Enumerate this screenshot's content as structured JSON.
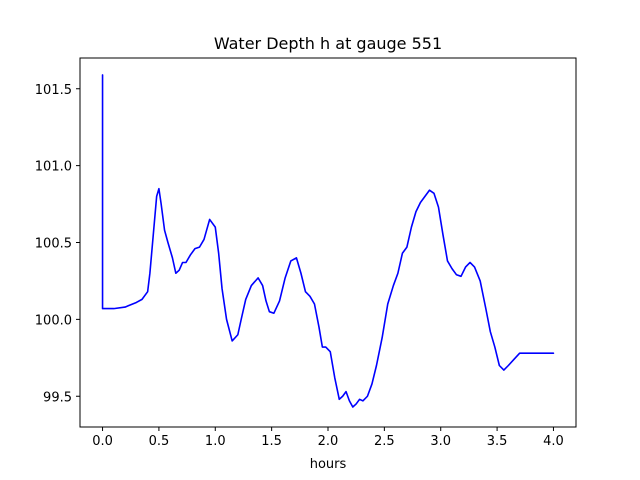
{
  "chart_data": {
    "type": "line",
    "title": "Water Depth h at gauge 551",
    "xlabel": "hours",
    "ylabel": "",
    "xlim": [
      -0.2,
      4.2
    ],
    "ylim": [
      99.3,
      101.7
    ],
    "xticks": [
      0.0,
      0.5,
      1.0,
      1.5,
      2.0,
      2.5,
      3.0,
      3.5,
      4.0
    ],
    "xtick_labels": [
      "0.0",
      "0.5",
      "1.0",
      "1.5",
      "2.0",
      "2.5",
      "3.0",
      "3.5",
      "4.0"
    ],
    "yticks": [
      99.5,
      100.0,
      100.5,
      101.0,
      101.5
    ],
    "ytick_labels": [
      "99.5",
      "100.0",
      "100.5",
      "101.0",
      "101.5"
    ],
    "grid": false,
    "series": [
      {
        "name": "h",
        "color": "#0000ff",
        "x": [
          0.0,
          0.0,
          0.001,
          0.05,
          0.1,
          0.2,
          0.3,
          0.35,
          0.4,
          0.42,
          0.45,
          0.48,
          0.5,
          0.52,
          0.55,
          0.58,
          0.62,
          0.65,
          0.68,
          0.71,
          0.74,
          0.78,
          0.82,
          0.86,
          0.9,
          0.95,
          1.0,
          1.03,
          1.06,
          1.1,
          1.15,
          1.2,
          1.23,
          1.27,
          1.32,
          1.38,
          1.42,
          1.45,
          1.48,
          1.52,
          1.57,
          1.62,
          1.67,
          1.72,
          1.76,
          1.8,
          1.84,
          1.88,
          1.92,
          1.95,
          1.98,
          2.02,
          2.06,
          2.1,
          2.13,
          2.16,
          2.19,
          2.22,
          2.25,
          2.28,
          2.31,
          2.35,
          2.39,
          2.43,
          2.48,
          2.53,
          2.58,
          2.62,
          2.66,
          2.7,
          2.74,
          2.78,
          2.82,
          2.86,
          2.9,
          2.94,
          2.98,
          3.02,
          3.06,
          3.1,
          3.14,
          3.18,
          3.22,
          3.26,
          3.3,
          3.35,
          3.4,
          3.44,
          3.48,
          3.52,
          3.56,
          3.6,
          3.65,
          3.7,
          3.75,
          3.8,
          3.83,
          3.86,
          3.9,
          3.95,
          4.0
        ],
        "values": [
          101.59,
          100.07,
          100.07,
          100.07,
          100.07,
          100.08,
          100.11,
          100.13,
          100.18,
          100.3,
          100.55,
          100.8,
          100.85,
          100.75,
          100.58,
          100.5,
          100.4,
          100.3,
          100.32,
          100.37,
          100.37,
          100.42,
          100.46,
          100.47,
          100.52,
          100.65,
          100.6,
          100.43,
          100.2,
          100.0,
          99.86,
          99.9,
          100.0,
          100.13,
          100.22,
          100.27,
          100.22,
          100.12,
          100.05,
          100.04,
          100.12,
          100.27,
          100.38,
          100.4,
          100.3,
          100.18,
          100.15,
          100.1,
          99.95,
          99.82,
          99.82,
          99.79,
          99.62,
          99.48,
          99.5,
          99.53,
          99.47,
          99.43,
          99.45,
          99.48,
          99.47,
          99.5,
          99.58,
          99.7,
          99.88,
          100.1,
          100.22,
          100.3,
          100.43,
          100.47,
          100.6,
          100.7,
          100.76,
          100.8,
          100.84,
          100.82,
          100.73,
          100.55,
          100.38,
          100.33,
          100.29,
          100.28,
          100.34,
          100.37,
          100.34,
          100.25,
          100.07,
          99.92,
          99.82,
          99.7,
          99.67,
          99.7,
          99.74,
          99.78,
          99.78,
          99.78,
          99.78,
          99.78,
          99.78,
          99.78,
          99.78
        ]
      }
    ]
  }
}
